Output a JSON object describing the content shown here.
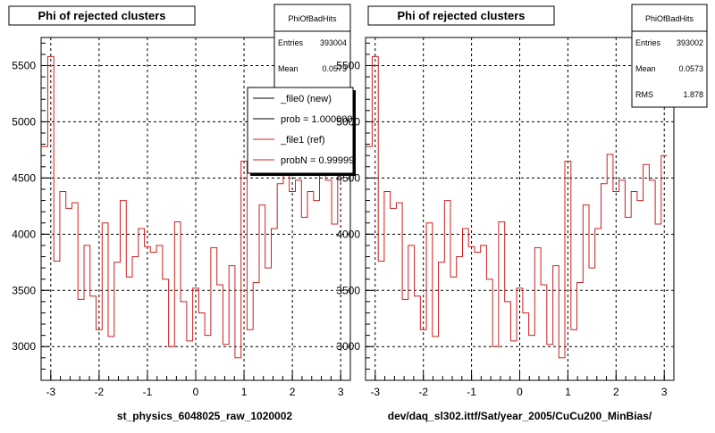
{
  "colors": {
    "histogram": "#cc2020",
    "new_series": "#000000",
    "frame": "#000000",
    "grid": "#000000"
  },
  "chart_data": [
    {
      "type": "line",
      "title": "Phi of rejected clusters",
      "xlabel": "st_physics_6048025_raw_1020002",
      "ylabel": "",
      "xlim": [
        -3.2,
        3.2
      ],
      "ylim": [
        2700,
        5750
      ],
      "grid": true,
      "xticks": [
        "-3",
        "-2",
        "-1",
        "0",
        "1",
        "2",
        "3"
      ],
      "yticks": [
        "3000",
        "3500",
        "4000",
        "4500",
        "5000",
        "5500"
      ],
      "stats": {
        "name": "PhiOfBadHits",
        "entries_label": "Entries",
        "entries_value": "393004",
        "mean_label": "Mean",
        "mean_value": "0.0573"
      },
      "legend": {
        "placement": "top-right",
        "entries": [
          "_file0 (new)",
          "prob = 1.000000",
          "_file1 (ref)",
          "probN = 0.99999"
        ]
      },
      "series": [
        {
          "name": "_file1 (ref)",
          "x": [
            -3.125,
            -3.0,
            -2.875,
            -2.75,
            -2.625,
            -2.5,
            -2.375,
            -2.25,
            -2.125,
            -2.0,
            -1.875,
            -1.75,
            -1.625,
            -1.5,
            -1.375,
            -1.25,
            -1.125,
            -1.0,
            -0.875,
            -0.75,
            -0.625,
            -0.5,
            -0.375,
            -0.25,
            -0.125,
            0.0,
            0.125,
            0.25,
            0.375,
            0.5,
            0.625,
            0.75,
            0.875,
            1.0,
            1.125,
            1.25,
            1.375,
            1.5,
            1.625,
            1.75,
            1.875,
            2.0,
            2.125,
            2.25,
            2.375,
            2.5,
            2.625,
            2.75,
            2.875,
            3.0
          ],
          "values": [
            4780,
            5580,
            3760,
            4380,
            4230,
            4280,
            3420,
            3900,
            3450,
            3150,
            4100,
            3090,
            3750,
            4300,
            3620,
            3800,
            4050,
            3890,
            3840,
            3900,
            3600,
            3000,
            4110,
            3400,
            3050,
            3520,
            3300,
            3100,
            3880,
            3550,
            3020,
            3720,
            2900,
            4650,
            3150,
            3570,
            4260,
            3700,
            4050,
            4450,
            4710,
            4380,
            4480,
            4150,
            4380,
            4300,
            4620,
            4480,
            4090,
            4700
          ]
        }
      ]
    },
    {
      "type": "line",
      "title": "Phi of rejected clusters",
      "xlabel": "dev/daq_sl302.ittf/Sat/year_2005/CuCu200_MinBias/",
      "ylabel": "",
      "xlim": [
        -3.2,
        3.2
      ],
      "ylim": [
        2700,
        5750
      ],
      "grid": true,
      "xticks": [
        "-3",
        "-2",
        "-1",
        "0",
        "1",
        "2",
        "3"
      ],
      "yticks": [
        "3000",
        "3500",
        "4000",
        "4500",
        "5000",
        "5500"
      ],
      "stats": {
        "name": "PhiOfBadHits",
        "entries_label": "Entries",
        "entries_value": "393002",
        "mean_label": "Mean",
        "mean_value": "0.0573",
        "rms_label": "RMS",
        "rms_value": "1.878"
      },
      "series": [
        {
          "x": [
            -3.125,
            -3.0,
            -2.875,
            -2.75,
            -2.625,
            -2.5,
            -2.375,
            -2.25,
            -2.125,
            -2.0,
            -1.875,
            -1.75,
            -1.625,
            -1.5,
            -1.375,
            -1.25,
            -1.125,
            -1.0,
            -0.875,
            -0.75,
            -0.625,
            -0.5,
            -0.375,
            -0.25,
            -0.125,
            0.0,
            0.125,
            0.25,
            0.375,
            0.5,
            0.625,
            0.75,
            0.875,
            1.0,
            1.125,
            1.25,
            1.375,
            1.5,
            1.625,
            1.75,
            1.875,
            2.0,
            2.125,
            2.25,
            2.375,
            2.5,
            2.625,
            2.75,
            2.875,
            3.0
          ],
          "values": [
            4780,
            5580,
            3760,
            4380,
            4230,
            4280,
            3420,
            3900,
            3450,
            3150,
            4100,
            3090,
            3750,
            4300,
            3620,
            3800,
            4050,
            3890,
            3840,
            3900,
            3600,
            3000,
            4110,
            3400,
            3050,
            3520,
            3300,
            3100,
            3880,
            3550,
            3020,
            3720,
            2900,
            4650,
            3150,
            3570,
            4260,
            3700,
            4050,
            4450,
            4710,
            4380,
            4480,
            4150,
            4380,
            4300,
            4620,
            4480,
            4090,
            4700
          ]
        }
      ]
    }
  ]
}
